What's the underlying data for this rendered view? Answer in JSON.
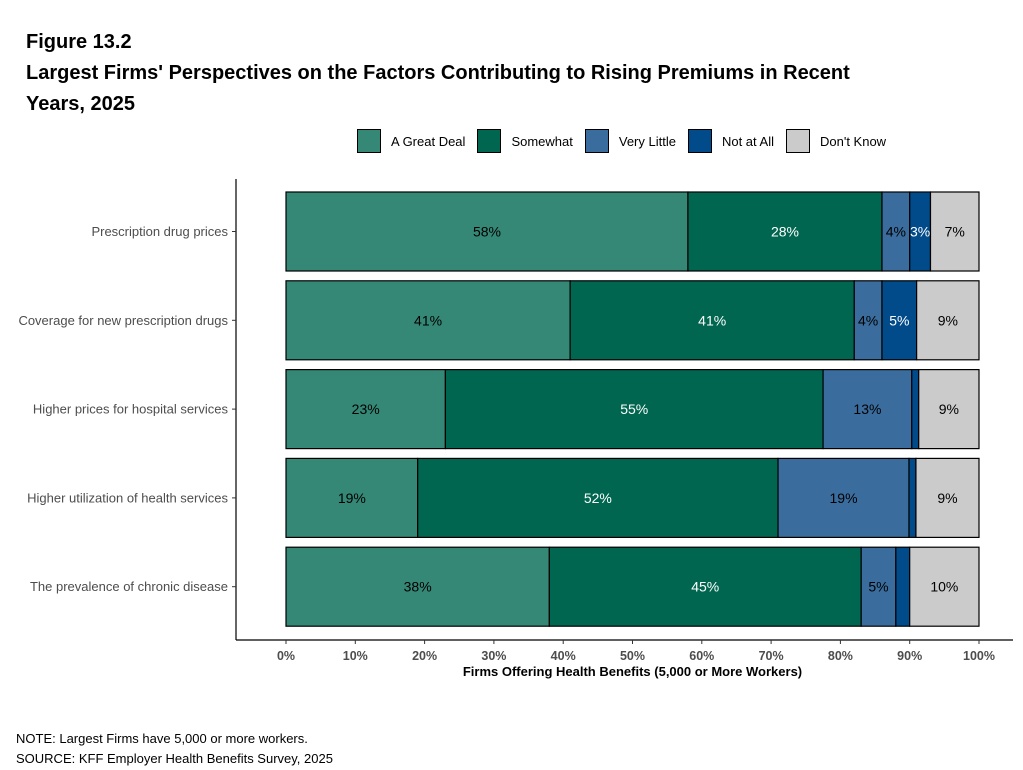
{
  "title": {
    "line1": "Figure 13.2",
    "line2": "Largest Firms' Perspectives on the Factors Contributing to Rising Premiums in Recent",
    "line3": "Years, 2025"
  },
  "notes": {
    "note": "NOTE: Largest Firms have 5,000 or more workers.",
    "source": "SOURCE: KFF Employer Health Benefits Survey, 2025"
  },
  "chart_data": {
    "type": "bar",
    "orientation": "horizontal",
    "stacked": true,
    "xlabel": "Firms Offering Health Benefits (5,000 or More Workers)",
    "xlim": [
      0,
      100
    ],
    "x_ticks": [
      "0%",
      "10%",
      "20%",
      "30%",
      "40%",
      "50%",
      "60%",
      "70%",
      "80%",
      "90%",
      "100%"
    ],
    "legend_position": "top",
    "categories": [
      "Prescription drug prices",
      "Coverage for new prescription drugs",
      "Higher prices for hospital services",
      "Higher utilization of health services",
      "The prevalence of chronic disease"
    ],
    "series": [
      {
        "name": "A Great Deal",
        "color": "#358776",
        "label_color": "#000000",
        "values": [
          58,
          41,
          23,
          19,
          38
        ],
        "labels": [
          "58%",
          "41%",
          "23%",
          "19%",
          "38%"
        ]
      },
      {
        "name": "Somewhat",
        "color": "#006650",
        "label_color": "#ffffff",
        "values": [
          28,
          41,
          54.5,
          52,
          45
        ],
        "labels": [
          "28%",
          "41%",
          "55%",
          "52%",
          "45%"
        ]
      },
      {
        "name": "Very Little",
        "color": "#3a6d9e",
        "label_color": "#000000",
        "values": [
          4,
          4,
          12.8,
          18.9,
          5
        ],
        "labels": [
          "4%",
          "4%",
          "13%",
          "19%",
          "5%"
        ]
      },
      {
        "name": "Not at All",
        "color": "#014b8a",
        "label_color": "#ffffff",
        "values": [
          3,
          5,
          1,
          1,
          2
        ],
        "labels": [
          "3%",
          "5%",
          "",
          "",
          ""
        ]
      },
      {
        "name": "Don't Know",
        "color": "#cbcbcb",
        "label_color": "#000000",
        "values": [
          7,
          9,
          8.7,
          9.1,
          10
        ],
        "labels": [
          "7%",
          "9%",
          "9%",
          "9%",
          "10%"
        ]
      }
    ]
  }
}
